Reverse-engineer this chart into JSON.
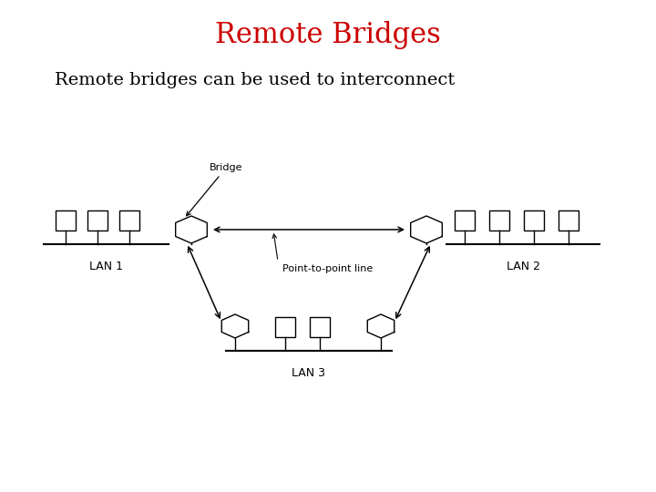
{
  "title": "Remote Bridges",
  "title_color": "#cc0000",
  "title_fontsize": 22,
  "subtitle": "Remote bridges can be used to interconnect",
  "subtitle_fontsize": 14,
  "background_color": "#ffffff",
  "lan1_label": "LAN 1",
  "lan2_label": "LAN 2",
  "lan3_label": "LAN 3",
  "bridge_label": "Bridge",
  "ptp_label": "Point-to-point line"
}
